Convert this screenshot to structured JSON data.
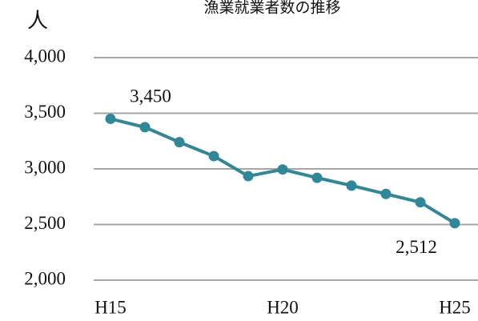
{
  "chart_data": {
    "type": "line",
    "title": "漁業就業者数の推移",
    "y_label": "人",
    "categories": [
      "H15",
      null,
      null,
      null,
      null,
      "H20",
      null,
      null,
      null,
      null,
      "H25"
    ],
    "series": [
      {
        "name": null,
        "color": "#2f8797",
        "values": [
          3450,
          3375,
          3240,
          3115,
          2935,
          2995,
          2920,
          2850,
          2775,
          2700,
          2512
        ],
        "value_labels": [
          "3,450",
          null,
          null,
          null,
          null,
          null,
          null,
          null,
          null,
          null,
          "2,512"
        ]
      }
    ],
    "ylim": [
      2000,
      4000
    ],
    "yticks": [
      {
        "value": 2000,
        "label": "2,000"
      },
      {
        "value": 2500,
        "label": "2,500"
      },
      {
        "value": 3000,
        "label": "3,000"
      },
      {
        "value": 3500,
        "label": "3,500"
      },
      {
        "value": 4000,
        "label": "4,000"
      }
    ],
    "grid": true
  }
}
